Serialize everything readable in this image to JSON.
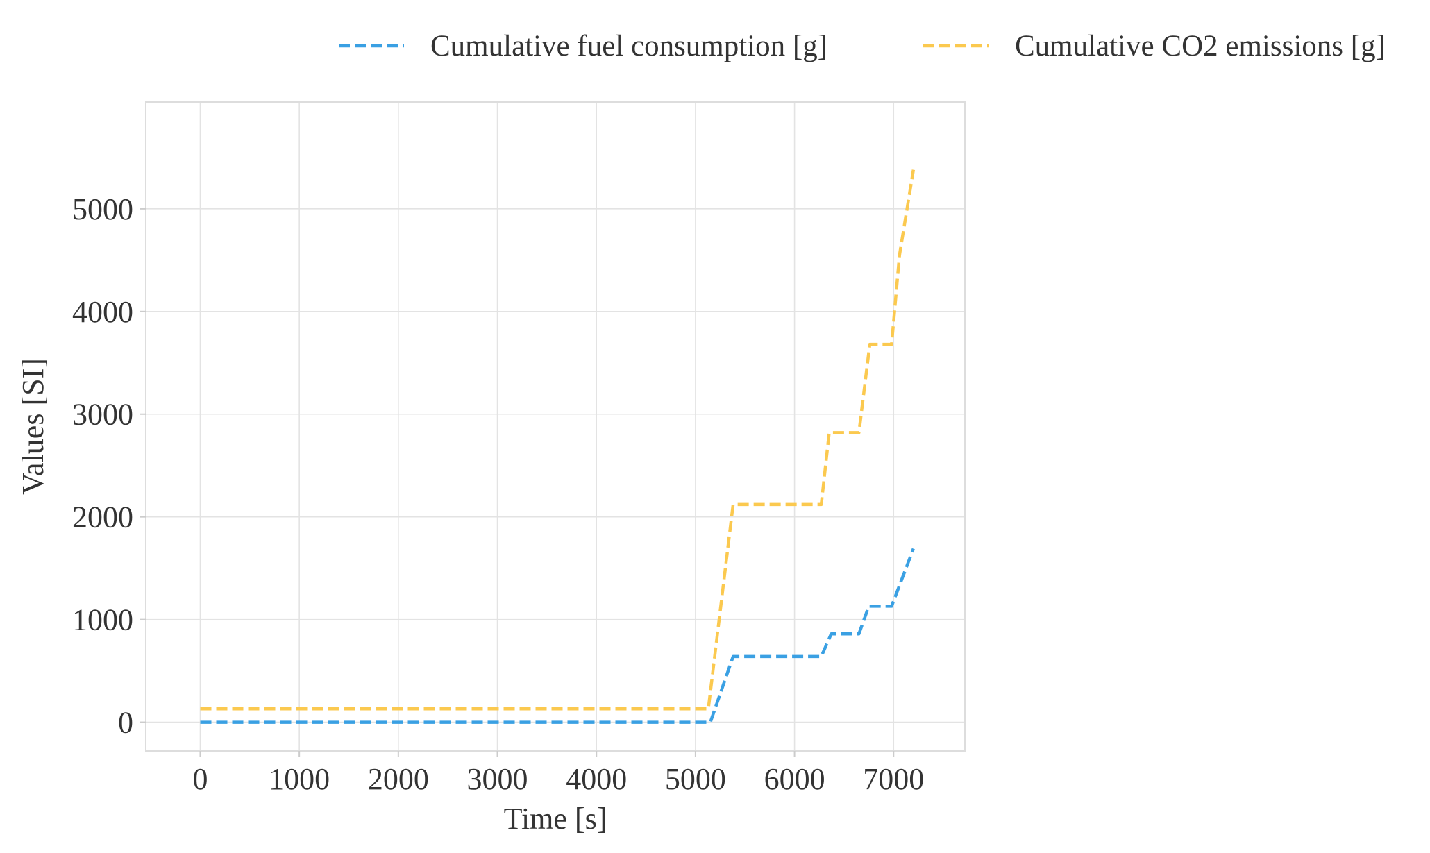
{
  "chart_data": {
    "type": "line",
    "title": "",
    "xlabel": "Time [s]",
    "ylabel": "Values [SI]",
    "xlim": [
      -550,
      7720
    ],
    "ylim": [
      -280,
      6040
    ],
    "xticks": [
      0,
      1000,
      2000,
      3000,
      4000,
      5000,
      6000,
      7000
    ],
    "yticks": [
      0,
      1000,
      2000,
      3000,
      4000,
      5000
    ],
    "grid": true,
    "legend_position": "top, outside plot",
    "series": [
      {
        "name": "Cumulative fuel consumption [g]",
        "color": "#3aa0e3",
        "line_style": "dashed",
        "x": [
          0,
          5100,
          5150,
          5380,
          6270,
          6370,
          6650,
          6750,
          6980,
          7200
        ],
        "y": [
          0,
          0,
          0,
          640,
          640,
          860,
          860,
          1130,
          1130,
          1690
        ]
      },
      {
        "name": "Cumulative CO2 emissions [g]",
        "color": "#fbc94f",
        "line_style": "dashed",
        "x": [
          0,
          5130,
          5380,
          6270,
          6350,
          6650,
          6760,
          6980,
          7060,
          7200
        ],
        "y": [
          130,
          130,
          2120,
          2120,
          2820,
          2820,
          3680,
          3680,
          4550,
          5380
        ]
      }
    ]
  }
}
